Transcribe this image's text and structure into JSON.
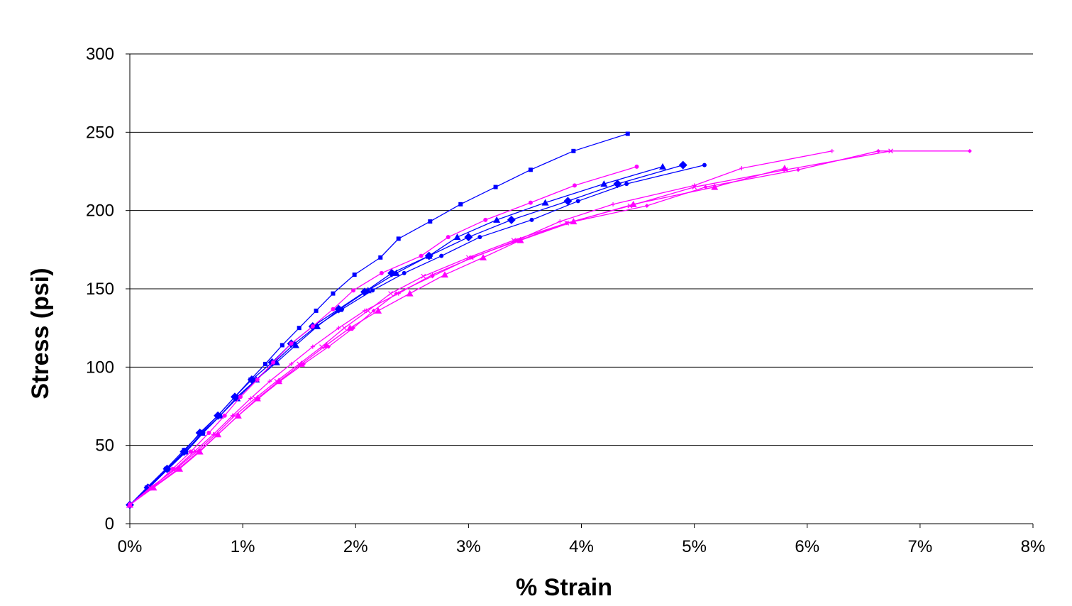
{
  "chart_data": {
    "type": "line",
    "title": "",
    "xlabel": "% Strain",
    "ylabel": "Stress (psi)",
    "xlim": [
      0,
      0.08
    ],
    "ylim": [
      0,
      300
    ],
    "x_ticks": [
      "0%",
      "1%",
      "2%",
      "3%",
      "4%",
      "5%",
      "6%",
      "7%",
      "8%"
    ],
    "y_ticks": [
      "0",
      "50",
      "100",
      "150",
      "200",
      "250",
      "300"
    ],
    "grid": "horizontal",
    "legend": "none",
    "series": [
      {
        "color": "#0000ff",
        "marker": "square",
        "x": [
          0.0,
          0.0015,
          0.0032,
          0.0048,
          0.0063,
          0.0078,
          0.0093,
          0.0107,
          0.012,
          0.0135,
          0.015,
          0.0165,
          0.018,
          0.0199,
          0.0222,
          0.0238,
          0.0266,
          0.0293,
          0.0324,
          0.0355,
          0.0393,
          0.0441
        ],
        "y": [
          12,
          23,
          35,
          47,
          58,
          69,
          81,
          92,
          102,
          114,
          125,
          136,
          147,
          159,
          170,
          182,
          193,
          204,
          215,
          226,
          238,
          249
        ]
      },
      {
        "color": "#0000ff",
        "marker": "diamond",
        "x": [
          0.0,
          0.0016,
          0.0033,
          0.0048,
          0.0062,
          0.0078,
          0.0093,
          0.0108,
          0.0126,
          0.0143,
          0.0162,
          0.0185,
          0.0208,
          0.0232,
          0.0265,
          0.03,
          0.0338,
          0.0388,
          0.0432,
          0.049
        ],
        "y": [
          12,
          23,
          35,
          46,
          58,
          69,
          81,
          92,
          103,
          115,
          126,
          137,
          148,
          160,
          171,
          183,
          194,
          206,
          217,
          229
        ]
      },
      {
        "color": "#0000ff",
        "marker": "circle",
        "x": [
          0.0,
          0.0017,
          0.0034,
          0.005,
          0.0065,
          0.008,
          0.0095,
          0.0112,
          0.0128,
          0.0146,
          0.0165,
          0.0188,
          0.0215,
          0.0243,
          0.0276,
          0.031,
          0.0356,
          0.0397,
          0.044,
          0.0509
        ],
        "y": [
          12,
          23,
          35,
          46,
          58,
          69,
          81,
          92,
          103,
          115,
          126,
          137,
          149,
          160,
          171,
          183,
          194,
          206,
          217,
          229
        ]
      },
      {
        "color": "#0000ff",
        "marker": "triangle",
        "x": [
          0.0,
          0.0016,
          0.0033,
          0.0049,
          0.0064,
          0.008,
          0.0095,
          0.0112,
          0.013,
          0.0147,
          0.0166,
          0.0186,
          0.0211,
          0.0236,
          0.0265,
          0.029,
          0.0325,
          0.0368,
          0.042,
          0.0472
        ],
        "y": [
          12,
          23,
          35,
          46,
          58,
          69,
          80,
          92,
          103,
          114,
          126,
          137,
          149,
          160,
          171,
          183,
          194,
          205,
          217,
          228
        ]
      },
      {
        "color": "#ff00ff",
        "marker": "circle",
        "x": [
          0.0,
          0.002,
          0.0038,
          0.0054,
          0.007,
          0.0084,
          0.0098,
          0.0113,
          0.0127,
          0.0143,
          0.0162,
          0.018,
          0.0198,
          0.0223,
          0.0258,
          0.0282,
          0.0315,
          0.0355,
          0.0394,
          0.0449
        ],
        "y": [
          12,
          23,
          35,
          46,
          58,
          69,
          81,
          92,
          103,
          115,
          126,
          137,
          149,
          160,
          171,
          183,
          194,
          205,
          216,
          228
        ]
      },
      {
        "color": "#ff00ff",
        "marker": "triangle",
        "x": [
          0.0,
          0.0021,
          0.0044,
          0.0062,
          0.0078,
          0.0096,
          0.0113,
          0.0132,
          0.0152,
          0.0174,
          0.0195,
          0.022,
          0.0248,
          0.0279,
          0.0313,
          0.0346,
          0.0393,
          0.0446,
          0.0518,
          0.058
        ],
        "y": [
          12,
          23,
          35,
          46,
          57,
          69,
          80,
          91,
          102,
          114,
          125,
          136,
          147,
          159,
          170,
          181,
          193,
          204,
          215,
          227
        ]
      },
      {
        "color": "#ff00ff",
        "marker": "plus",
        "x": [
          0.0,
          0.0019,
          0.004,
          0.0057,
          0.0074,
          0.0091,
          0.0107,
          0.0124,
          0.0143,
          0.0162,
          0.0185,
          0.0208,
          0.0238,
          0.0268,
          0.0304,
          0.0343,
          0.0381,
          0.0428,
          0.05,
          0.0542,
          0.0622
        ],
        "y": [
          12,
          23,
          35,
          46,
          57,
          69,
          80,
          91,
          102,
          113,
          125,
          136,
          147,
          159,
          170,
          181,
          193,
          204,
          216,
          227,
          238
        ]
      },
      {
        "color": "#ff00ff",
        "marker": "star",
        "x": [
          0.0,
          0.0018,
          0.0041,
          0.0059,
          0.0076,
          0.0093,
          0.0111,
          0.013,
          0.015,
          0.017,
          0.019,
          0.0211,
          0.0231,
          0.026,
          0.03,
          0.034,
          0.0387,
          0.0443,
          0.05,
          0.0581,
          0.0674
        ],
        "y": [
          12,
          23,
          35,
          46,
          57,
          69,
          80,
          91,
          102,
          113,
          125,
          136,
          147,
          158,
          170,
          181,
          192,
          203,
          215,
          226,
          238
        ]
      },
      {
        "color": "#ff00ff",
        "marker": "diamond-small",
        "x": [
          0.0,
          0.002,
          0.0043,
          0.0061,
          0.0078,
          0.0096,
          0.0114,
          0.0133,
          0.0154,
          0.0176,
          0.0198,
          0.0216,
          0.0236,
          0.0268,
          0.0303,
          0.0345,
          0.0387,
          0.0458,
          0.051,
          0.0592,
          0.0663,
          0.0744
        ],
        "y": [
          12,
          23,
          35,
          46,
          57,
          69,
          80,
          91,
          102,
          113,
          125,
          136,
          147,
          158,
          170,
          181,
          192,
          203,
          215,
          226,
          238,
          238
        ]
      }
    ]
  }
}
